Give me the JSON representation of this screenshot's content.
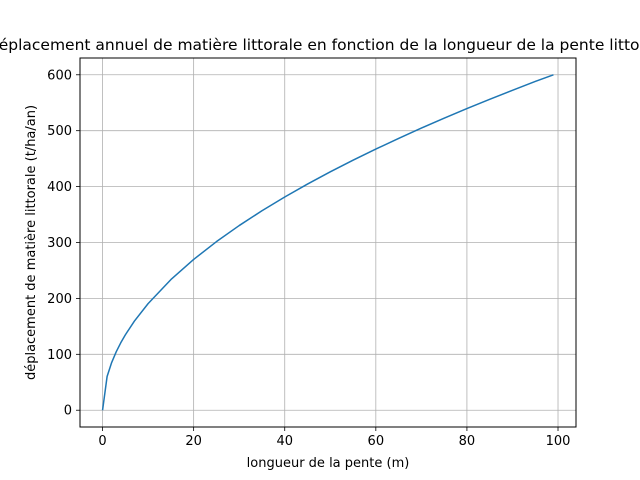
{
  "chart_data": {
    "type": "line",
    "title": "Déplacement annuel de matière littorale en fonction de la longueur de la pente littorale",
    "xlabel": "longueur de la pente (m)",
    "ylabel": "déplacement de matière littorale (t/ha/an)",
    "xlim": [
      -4.95,
      103.95
    ],
    "ylim": [
      -30,
      630
    ],
    "xticks": [
      0,
      20,
      40,
      60,
      80,
      100
    ],
    "yticks": [
      0,
      100,
      200,
      300,
      400,
      500,
      600
    ],
    "grid": true,
    "legend": "none",
    "series": [
      {
        "color": "#1f77b4",
        "x": [
          0,
          1,
          2,
          3,
          4,
          5,
          7,
          10,
          15,
          20,
          25,
          30,
          35,
          40,
          45,
          50,
          55,
          60,
          65,
          70,
          75,
          80,
          85,
          90,
          95,
          99
        ],
        "y": [
          0,
          60.3,
          85.3,
          104.5,
          120.6,
          134.8,
          159.5,
          190.7,
          233.6,
          269.7,
          301.5,
          330.3,
          356.8,
          381.4,
          404.5,
          426.4,
          447.2,
          467.1,
          486.2,
          504.6,
          522.3,
          539.5,
          556.1,
          572.3,
          588.0,
          600.0
        ]
      }
    ]
  }
}
